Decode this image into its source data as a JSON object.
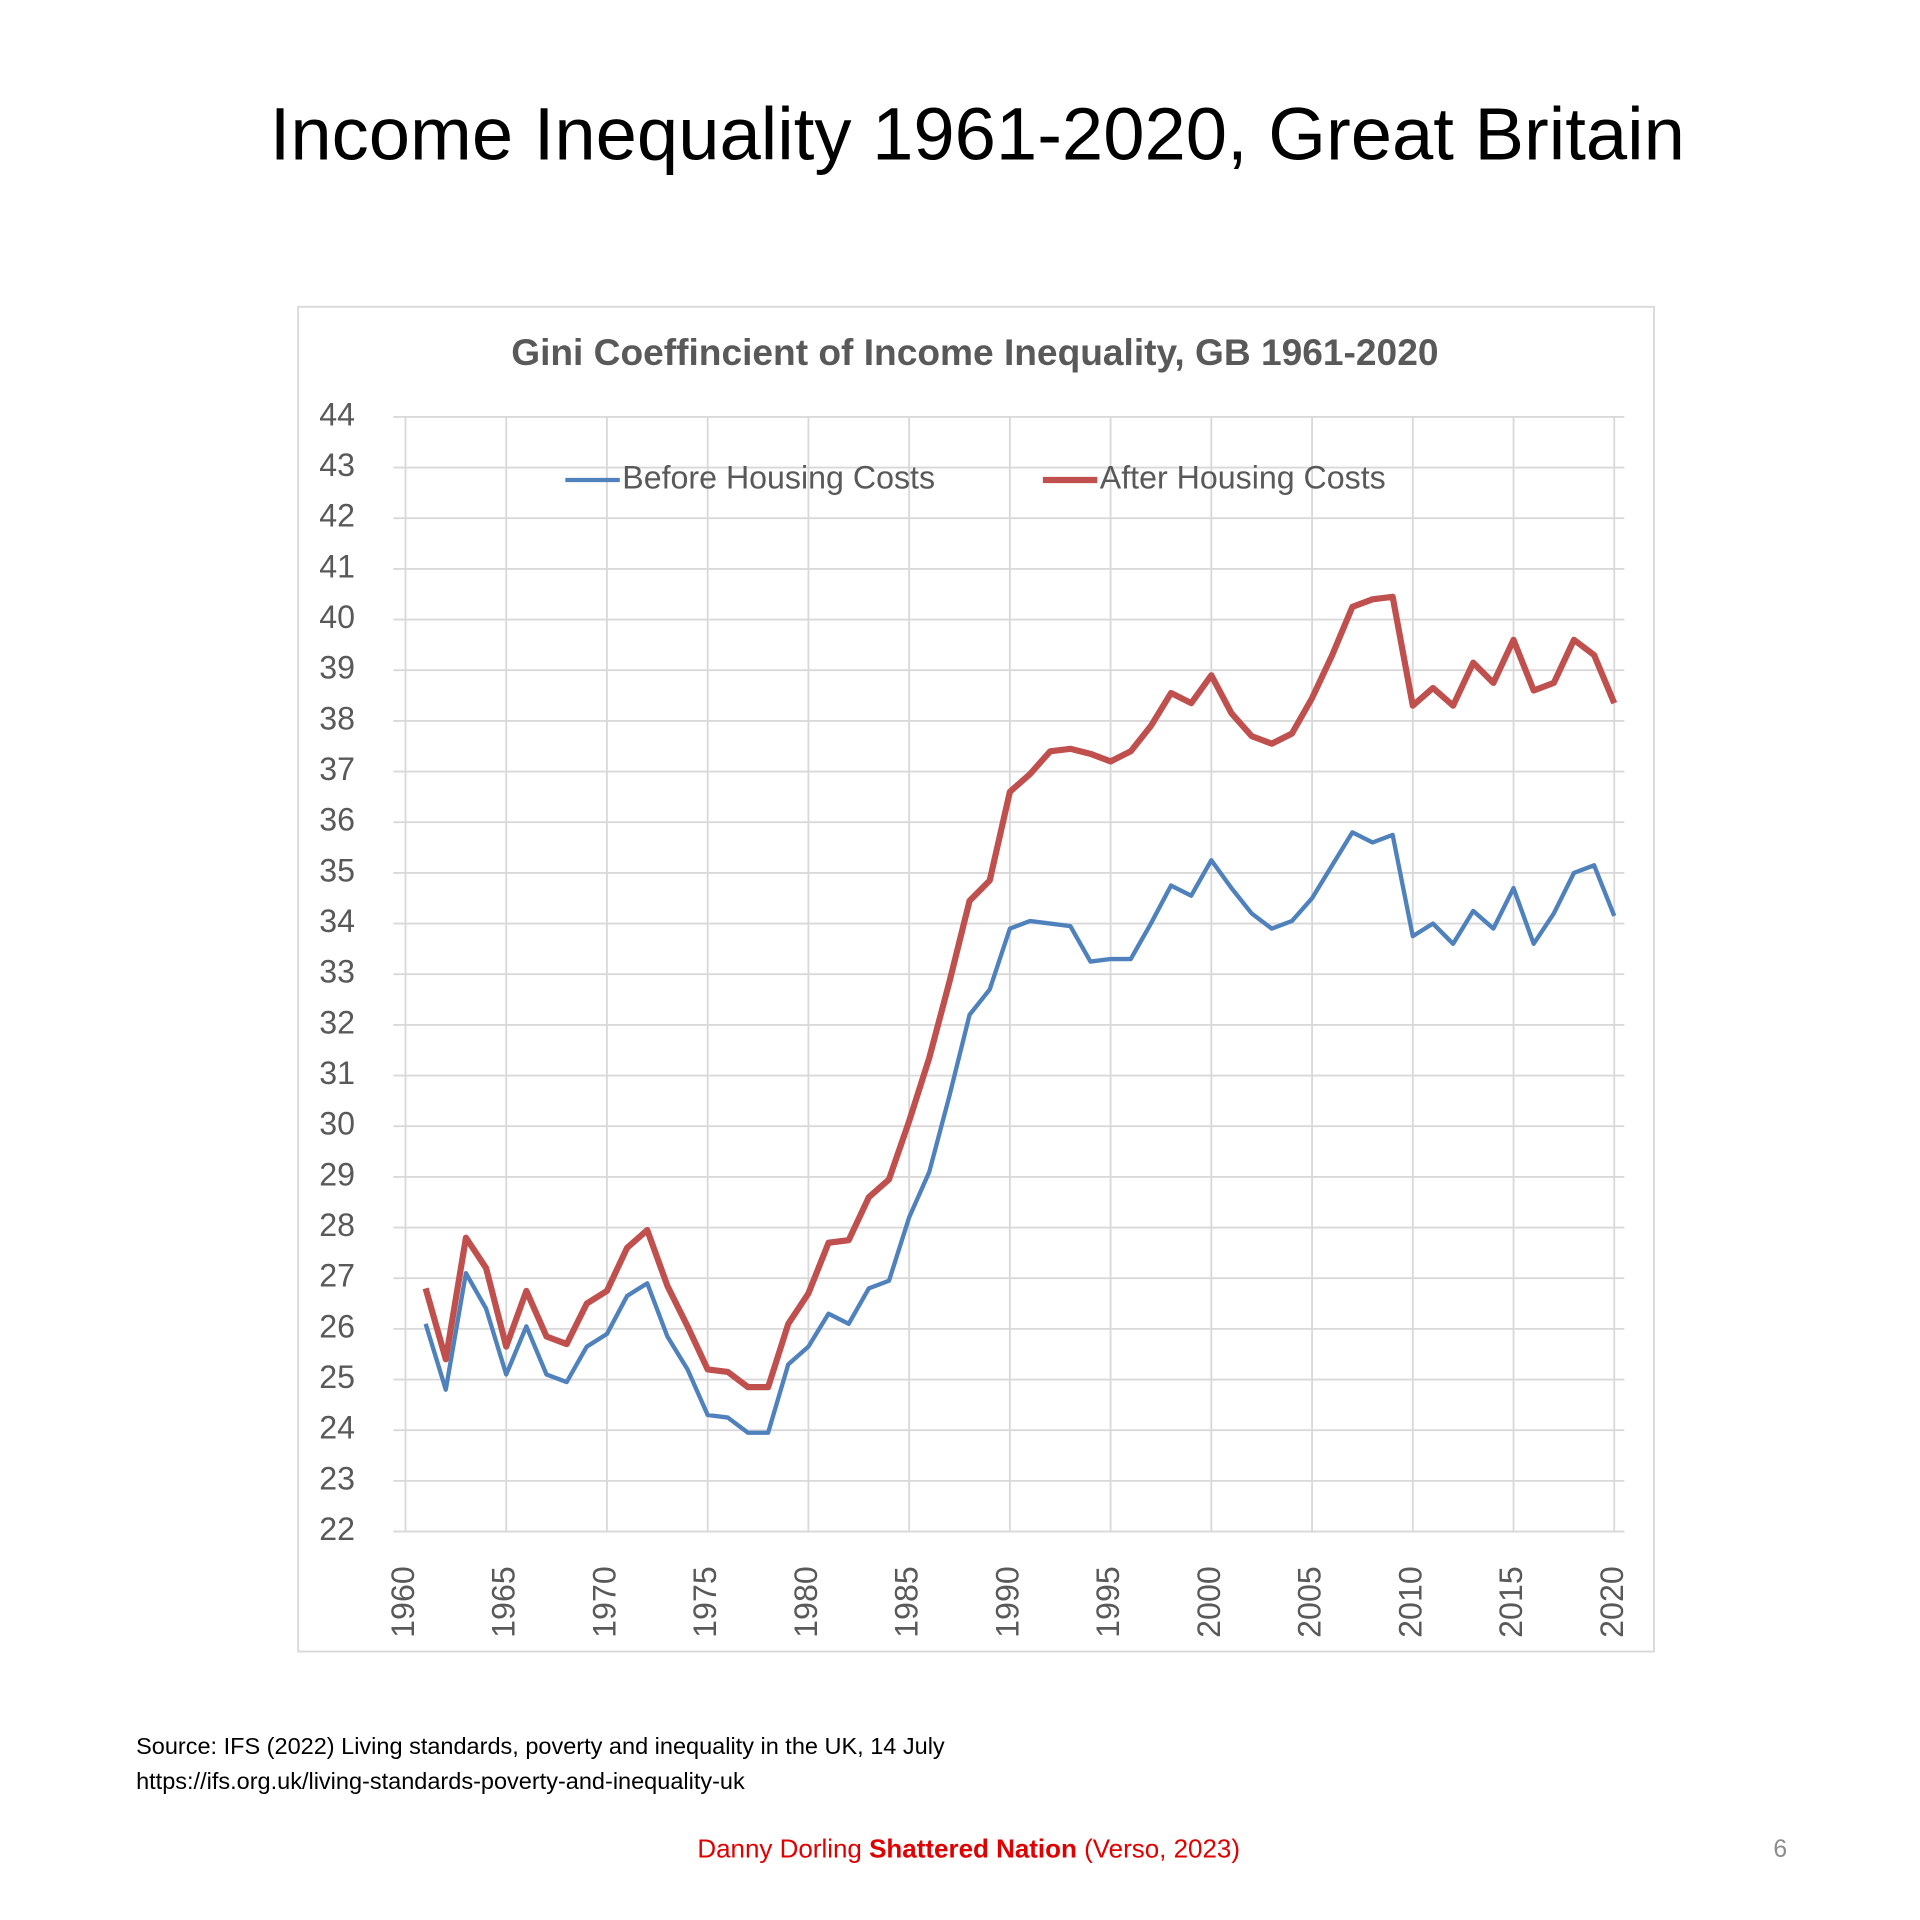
{
  "slide": {
    "title": "Income Inequality 1961-2020, Great Britain",
    "source": [
      "Source: IFS (2022) Living standards, poverty and inequality in the UK,  14 July",
      "https://ifs.org.uk/living-standards-poverty-and-inequality-uk"
    ],
    "footer": {
      "author": "Danny Dorling",
      "book": "Shattered Nation",
      "publisher": "(Verso, 2023)"
    },
    "page_number": "6"
  },
  "chart_data": {
    "type": "line",
    "title": "Gini Coeffincient of Income Inequality, GB 1961-2020",
    "x": [
      1961,
      1962,
      1963,
      1964,
      1965,
      1966,
      1967,
      1968,
      1969,
      1970,
      1971,
      1972,
      1973,
      1974,
      1975,
      1976,
      1977,
      1978,
      1979,
      1980,
      1981,
      1982,
      1983,
      1984,
      1985,
      1986,
      1987,
      1988,
      1989,
      1990,
      1991,
      1992,
      1993,
      1994,
      1995,
      1996,
      1997,
      1998,
      1999,
      2000,
      2001,
      2002,
      2003,
      2004,
      2005,
      2006,
      2007,
      2008,
      2009,
      2010,
      2011,
      2012,
      2013,
      2014,
      2015,
      2016,
      2017,
      2018,
      2019,
      2020
    ],
    "series": [
      {
        "name": "Before Housing Costs",
        "color": "#4f81bd",
        "values": [
          26.1,
          24.8,
          27.1,
          26.4,
          25.1,
          26.05,
          25.1,
          24.95,
          25.65,
          25.9,
          26.65,
          26.9,
          25.85,
          25.2,
          24.3,
          24.25,
          23.95,
          23.95,
          25.3,
          25.65,
          26.3,
          26.1,
          26.8,
          26.95,
          28.2,
          29.1,
          30.6,
          32.2,
          32.7,
          33.9,
          34.05,
          34.0,
          33.95,
          33.25,
          33.3,
          33.3,
          34.0,
          34.75,
          34.55,
          35.25,
          34.7,
          34.2,
          33.9,
          34.05,
          34.5,
          35.15,
          35.8,
          35.6,
          35.75,
          33.75,
          34.0,
          33.6,
          34.25,
          33.9,
          34.7,
          33.6,
          34.2,
          35.0,
          35.15,
          34.15
        ]
      },
      {
        "name": "After Housing Costs",
        "color": "#c0504d",
        "values": [
          26.8,
          25.4,
          27.8,
          27.2,
          25.65,
          26.75,
          25.85,
          25.7,
          26.5,
          26.75,
          27.6,
          27.95,
          26.85,
          26.05,
          25.2,
          25.15,
          24.85,
          24.85,
          26.1,
          26.7,
          27.7,
          27.75,
          28.6,
          28.95,
          30.1,
          31.35,
          32.85,
          34.45,
          34.85,
          36.6,
          36.95,
          37.4,
          37.45,
          37.35,
          37.2,
          37.4,
          37.9,
          38.55,
          38.35,
          38.9,
          38.15,
          37.7,
          37.55,
          37.75,
          38.45,
          39.3,
          40.25,
          40.4,
          40.45,
          38.3,
          38.65,
          38.3,
          39.15,
          38.75,
          39.6,
          38.6,
          38.75,
          39.6,
          39.3,
          38.35
        ]
      }
    ],
    "xlim": [
      1959.4,
      2020.5
    ],
    "xticks": [
      1960,
      1965,
      1970,
      1975,
      1980,
      1985,
      1990,
      1995,
      2000,
      2005,
      2010,
      2015,
      2020
    ],
    "ylim": [
      22,
      44
    ],
    "yticks": [
      22,
      23,
      24,
      25,
      26,
      27,
      28,
      29,
      30,
      31,
      32,
      33,
      34,
      35,
      36,
      37,
      38,
      39,
      40,
      41,
      42,
      43,
      44
    ],
    "grid": true,
    "legend": "top"
  }
}
